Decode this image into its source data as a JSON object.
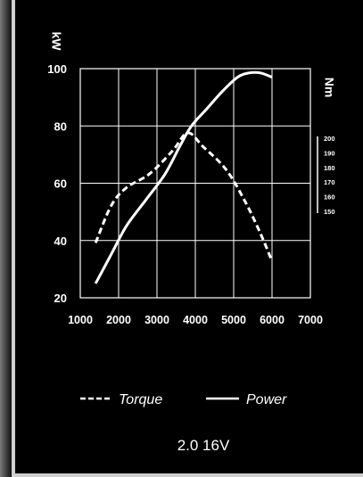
{
  "chart_data": {
    "type": "line",
    "title": "",
    "caption": "2.0 16V",
    "x_ticks": [
      "1000",
      "2000",
      "3000",
      "4000",
      "5000",
      "6000",
      "7000"
    ],
    "xlim": [
      1000,
      7000
    ],
    "y_left": {
      "label": "kW",
      "ticks": [
        "20",
        "40",
        "60",
        "80",
        "100"
      ],
      "ylim": [
        20,
        100
      ]
    },
    "y_right": {
      "label": "Nm",
      "ticks": [
        "200",
        "190",
        "180",
        "170",
        "160",
        "150"
      ],
      "ylim": [
        150,
        200
      ]
    },
    "grid": true,
    "legend_placement": "bottom",
    "series": [
      {
        "name": "Torque",
        "style": "dashed",
        "axis": "right",
        "x": [
          1400,
          1800,
          2200,
          2800,
          3400,
          3800,
          4200,
          4800,
          5300,
          5700,
          6000
        ],
        "y": [
          162,
          170,
          174,
          177,
          182,
          186,
          183,
          178,
          171,
          164,
          158
        ]
      },
      {
        "name": "Power",
        "style": "solid",
        "axis": "left",
        "x": [
          1400,
          1800,
          2200,
          2700,
          3200,
          3600,
          3900,
          4300,
          4700,
          5100,
          5400,
          5700,
          6000
        ],
        "y": [
          25,
          35,
          45,
          54,
          63,
          73,
          80,
          86,
          92,
          97,
          98.5,
          98.5,
          97
        ]
      }
    ],
    "colors": {
      "background": "#000000",
      "foreground": "#ffffff"
    }
  }
}
